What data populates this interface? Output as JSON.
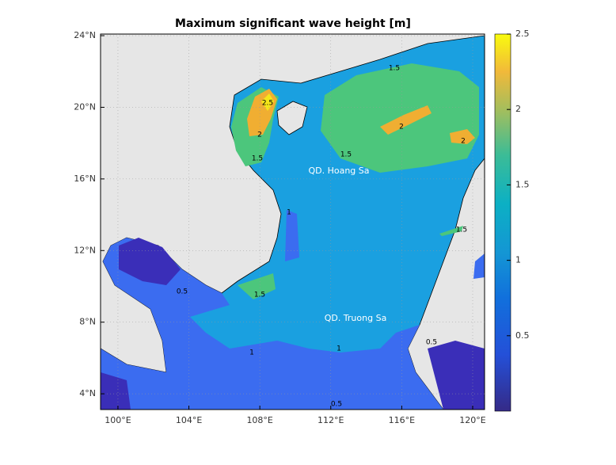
{
  "map": {
    "title": "Maximum significant wave height [m]",
    "xlim": [
      99.02,
      120.67
    ],
    "ylim": [
      3.12,
      24.09
    ],
    "xticks": [
      {
        "value": 100,
        "label": "100°E"
      },
      {
        "value": 104,
        "label": "104°E"
      },
      {
        "value": 108,
        "label": "108°E"
      },
      {
        "value": 112,
        "label": "112°E"
      },
      {
        "value": 116,
        "label": "116°E"
      },
      {
        "value": 120,
        "label": "120°E"
      }
    ],
    "yticks": [
      {
        "value": 4,
        "label": "4°N"
      },
      {
        "value": 8,
        "label": "8°N"
      },
      {
        "value": 12,
        "label": "12°N"
      },
      {
        "value": 16,
        "label": "16°N"
      },
      {
        "value": 20,
        "label": "20°N"
      },
      {
        "value": 24,
        "label": "24°N"
      }
    ],
    "grid": true,
    "colorbar": {
      "lim": [
        0,
        2.5
      ],
      "ticks": [
        0.5,
        1,
        1.5,
        2,
        2.5
      ]
    },
    "place_labels": [
      "QD. Hoang Sa",
      "QD. Truong Sa"
    ],
    "contour_labels": [
      1.5,
      2,
      2,
      1.5,
      2.5,
      2,
      1.5,
      1.5,
      1,
      1.5,
      1,
      1,
      0.5,
      0.5,
      0.5
    ]
  }
}
